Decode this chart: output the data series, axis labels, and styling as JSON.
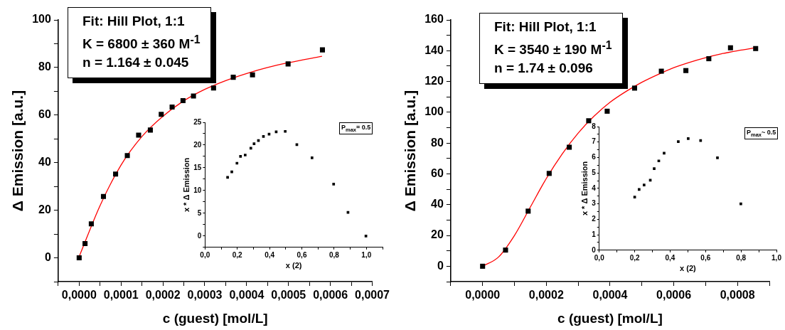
{
  "chart_data": [
    {
      "type": "scatter",
      "xlabel": "c (guest) [mol/L]",
      "ylabel": "Δ Emission [a.u.]",
      "marker": "square",
      "legend": false,
      "grid": false,
      "xlim": [
        -5e-05,
        0.0007
      ],
      "ylim": [
        -10,
        100
      ],
      "xticks": [
        {
          "value": -5e-05,
          "label": null
        },
        {
          "value": 0,
          "label": "0,0000"
        },
        {
          "value": 5e-05,
          "label": null
        },
        {
          "value": 0.0001,
          "label": "0,0001"
        },
        {
          "value": 0.00015,
          "label": null
        },
        {
          "value": 0.0002,
          "label": "0,0002"
        },
        {
          "value": 0.00025,
          "label": null
        },
        {
          "value": 0.0003,
          "label": "0,0003"
        },
        {
          "value": 0.00035,
          "label": null
        },
        {
          "value": 0.0004,
          "label": "0,0004"
        },
        {
          "value": 0.00045,
          "label": null
        },
        {
          "value": 0.0005,
          "label": "0,0005"
        },
        {
          "value": 0.00055,
          "label": null
        },
        {
          "value": 0.0006,
          "label": "0,0006"
        },
        {
          "value": 0.00065,
          "label": null
        },
        {
          "value": 0.0007,
          "label": "0,0007"
        }
      ],
      "yticks": [
        {
          "value": -10,
          "label": null
        },
        0,
        {
          "value": 10,
          "label": null
        },
        20,
        {
          "value": 30,
          "label": null
        },
        40,
        {
          "value": 50,
          "label": null
        },
        60,
        {
          "value": 70,
          "label": null
        },
        80,
        {
          "value": 90,
          "label": null
        },
        100
      ],
      "annotations": [
        "Fit: Hill Plot, 1:1",
        "K = 6800 ± 360 M$^{-1}$",
        "n = 1.164 ± 0.045"
      ],
      "series": [
        {
          "color": "#000000",
          "x": [
            0,
            1.4e-05,
            2.9e-05,
            5.8e-05,
            8.7e-05,
            0.000115,
            0.000142,
            0.00017,
            0.000196,
            0.000222,
            0.000248,
            0.000273,
            0.000321,
            0.000368,
            0.000414,
            0.000499,
            0.000581
          ],
          "values": [
            0,
            6,
            14.3,
            25.8,
            35.2,
            43,
            51.6,
            53.7,
            60.3,
            63.4,
            66.1,
            68,
            71.4,
            75.9,
            76.9,
            81.5,
            87.4
          ]
        },
        {
          "type": "line",
          "marker": "none",
          "color": "#ff0000",
          "x": [
            0,
            5e-05,
            0.0001,
            0.00015,
            0.0002,
            0.00025,
            0.0003,
            0.00035,
            0.0004,
            0.00045,
            0.0005,
            0.00058
          ],
          "values": [
            0.5,
            22,
            39,
            51,
            59.5,
            66,
            70.8,
            74.5,
            77.5,
            80,
            82,
            84.7
          ]
        }
      ]
    },
    {
      "type": "scatter",
      "xlabel": "x (2)",
      "ylabel": "x * Δ Emission",
      "marker": "square",
      "legend": false,
      "grid": false,
      "xlim": [
        0,
        1.1
      ],
      "ylim": [
        -2.5,
        25
      ],
      "xticks": [
        {
          "value": 0,
          "label": "0,0"
        },
        {
          "value": 0.1,
          "label": null
        },
        {
          "value": 0.2,
          "label": "0,2"
        },
        {
          "value": 0.3,
          "label": null
        },
        {
          "value": 0.4,
          "label": "0,4"
        },
        {
          "value": 0.5,
          "label": null
        },
        {
          "value": 0.6,
          "label": "0,6"
        },
        {
          "value": 0.7,
          "label": null
        },
        {
          "value": 0.8,
          "label": "0,8"
        },
        {
          "value": 0.9,
          "label": null
        },
        {
          "value": 1,
          "label": "1,0"
        },
        {
          "value": 1.1,
          "label": null
        }
      ],
      "yticks": [
        {
          "value": -2.5,
          "label": null
        },
        0,
        {
          "value": 2.5,
          "label": null
        },
        5,
        {
          "value": 7.5,
          "label": null
        },
        10,
        {
          "value": 12.5,
          "label": null
        },
        15,
        {
          "value": 17.5,
          "label": null
        },
        20,
        {
          "value": 22.5,
          "label": null
        },
        25
      ],
      "annotations": [
        "P$_{max}$= 0.5"
      ],
      "series": [
        {
          "color": "#000000",
          "x": [
            0.14,
            0.166,
            0.198,
            0.22,
            0.249,
            0.284,
            0.304,
            0.331,
            0.362,
            0.397,
            0.441,
            0.497,
            0.569,
            0.663,
            0.797,
            0.886,
            0.997
          ],
          "values": [
            12.9,
            14.1,
            16,
            17.5,
            17.8,
            19.3,
            20.3,
            21,
            21.9,
            22.4,
            22.9,
            23,
            20.1,
            17.2,
            11.4,
            5.2,
            0
          ]
        }
      ]
    },
    {
      "type": "scatter",
      "xlabel": "c (guest) [mol/L]",
      "ylabel": "Δ Emission [a.u.]",
      "marker": "square",
      "legend": false,
      "grid": false,
      "xlim": [
        -0.0001,
        0.0009
      ],
      "ylim": [
        -10,
        160
      ],
      "xticks": [
        {
          "value": -0.0001,
          "label": null
        },
        {
          "value": 0,
          "label": "0,0000"
        },
        {
          "value": 0.0001,
          "label": null
        },
        {
          "value": 0.0002,
          "label": "0,0002"
        },
        {
          "value": 0.0003,
          "label": null
        },
        {
          "value": 0.0004,
          "label": "0,0004"
        },
        {
          "value": 0.0005,
          "label": null
        },
        {
          "value": 0.0006,
          "label": "0,0006"
        },
        {
          "value": 0.0007,
          "label": null
        },
        {
          "value": 0.0008,
          "label": "0,0008"
        },
        {
          "value": 0.0009,
          "label": null
        }
      ],
      "yticks": [
        {
          "value": -10,
          "label": null
        },
        0,
        {
          "value": 10,
          "label": null
        },
        20,
        {
          "value": 30,
          "label": null
        },
        40,
        {
          "value": 50,
          "label": null
        },
        60,
        {
          "value": 70,
          "label": null
        },
        80,
        {
          "value": 90,
          "label": null
        },
        100,
        {
          "value": 110,
          "label": null
        },
        120,
        {
          "value": 130,
          "label": null
        },
        140,
        {
          "value": 150,
          "label": null
        },
        160
      ],
      "annotations": [
        "Fit: Hill Plot, 1:1",
        "K = 3540 ± 190 M$^{-1}$",
        "n = 1.74 ± 0.096"
      ],
      "series": [
        {
          "color": "#000000",
          "x": [
            0,
            7.2e-05,
            0.000143,
            0.000209,
            0.000272,
            0.000333,
            0.000391,
            0.000477,
            0.000561,
            0.000638,
            0.00071,
            0.000778,
            0.000857
          ],
          "values": [
            0,
            10.5,
            35.8,
            60.3,
            77.3,
            94.5,
            100.7,
            115.7,
            126.7,
            127.1,
            134.8,
            141.9,
            141.4
          ]
        },
        {
          "type": "line",
          "marker": "none",
          "color": "#ff0000",
          "x": [
            0,
            5e-05,
            0.0001,
            0.00015,
            0.0002,
            0.00025,
            0.0003,
            0.00035,
            0.0004,
            0.00045,
            0.0005,
            0.00055,
            0.0006,
            0.00065,
            0.0007,
            0.00075,
            0.0008,
            0.00086
          ],
          "values": [
            0,
            6,
            20,
            38.5,
            57,
            73,
            86.5,
            97.5,
            106.5,
            113.5,
            119.5,
            124.5,
            129,
            132.5,
            135.5,
            138,
            140,
            142
          ]
        }
      ]
    },
    {
      "type": "scatter",
      "xlabel": "x (2)",
      "ylabel": "x * Δ Emission",
      "marker": "square",
      "legend": false,
      "grid": false,
      "xlim": [
        0,
        1
      ],
      "ylim": [
        0,
        8
      ],
      "xticks": [
        {
          "value": 0,
          "label": "0,0"
        },
        {
          "value": 0.1,
          "label": null
        },
        {
          "value": 0.2,
          "label": "0,2"
        },
        {
          "value": 0.3,
          "label": null
        },
        {
          "value": 0.4,
          "label": "0,4"
        },
        {
          "value": 0.5,
          "label": null
        },
        {
          "value": 0.6,
          "label": "0,6"
        },
        {
          "value": 0.7,
          "label": null
        },
        {
          "value": 0.8,
          "label": "0,8"
        },
        {
          "value": 0.9,
          "label": null
        },
        {
          "value": 1,
          "label": "1,0"
        }
      ],
      "yticks": [
        0,
        {
          "value": 0.5,
          "label": null
        },
        1,
        {
          "value": 1.5,
          "label": null
        },
        2,
        {
          "value": 2.5,
          "label": null
        },
        3,
        {
          "value": 3.5,
          "label": null
        },
        4,
        {
          "value": 4.5,
          "label": null
        },
        5,
        {
          "value": 5.5,
          "label": null
        },
        6,
        {
          "value": 6.5,
          "label": null
        },
        7,
        {
          "value": 7.5,
          "label": null
        },
        8
      ],
      "annotations": [
        "P$_{max}$~ 0.5"
      ],
      "series": [
        {
          "color": "#000000",
          "x": [
            0.2,
            0.225,
            0.253,
            0.288,
            0.31,
            0.336,
            0.366,
            0.446,
            0.502,
            0.572,
            0.667,
            0.799
          ],
          "values": [
            3.44,
            3.93,
            4.22,
            4.53,
            5.28,
            5.78,
            6.28,
            7.03,
            7.22,
            7.1,
            5.98,
            3
          ]
        }
      ]
    }
  ]
}
